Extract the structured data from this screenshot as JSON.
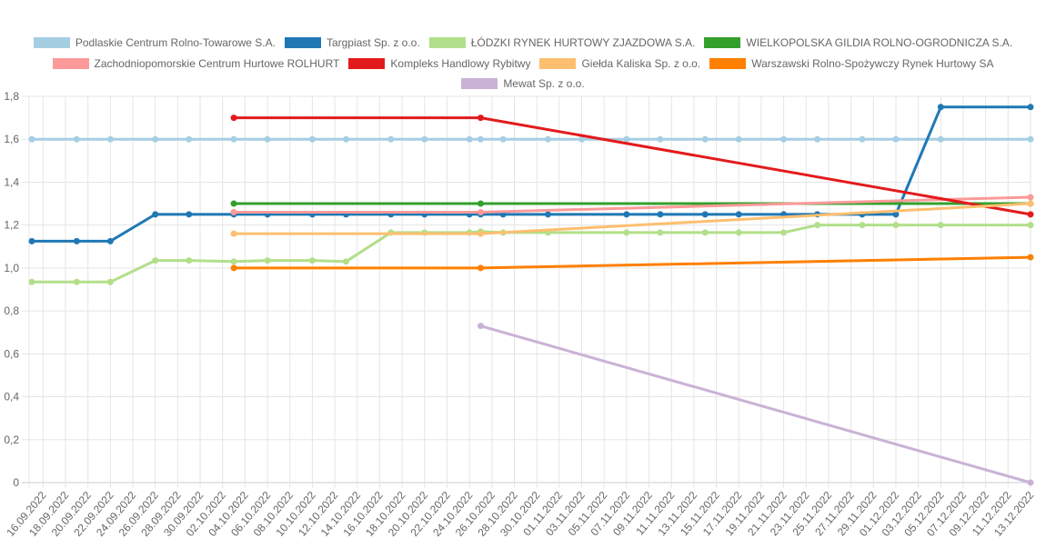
{
  "chart_data": {
    "type": "line",
    "title": "",
    "xlabel": "",
    "ylabel": "",
    "ylim": [
      0,
      1.8
    ],
    "y_ticks": [
      "0",
      "0,2",
      "0,4",
      "0,6",
      "0,8",
      "1,0",
      "1,2",
      "1,4",
      "1,6",
      "1,8"
    ],
    "x_range": [
      "2022-09-15",
      "2022-12-13"
    ],
    "x_tick_labels": [
      "16.09.2022",
      "18.09.2022",
      "20.09.2022",
      "22.09.2022",
      "24.09.2022",
      "26.09.2022",
      "28.09.2022",
      "30.09.2022",
      "02.10.2022",
      "04.10.2022",
      "06.10.2022",
      "08.10.2022",
      "10.10.2022",
      "12.10.2022",
      "14.10.2022",
      "16.10.2022",
      "18.10.2022",
      "20.10.2022",
      "22.10.2022",
      "24.10.2022",
      "26.10.2022",
      "28.10.2022",
      "30.10.2022",
      "01.11.2022",
      "03.11.2022",
      "05.11.2022",
      "07.11.2022",
      "09.11.2022",
      "11.11.2022",
      "13.11.2022",
      "15.11.2022",
      "17.11.2022",
      "19.11.2022",
      "21.11.2022",
      "23.11.2022",
      "25.11.2022",
      "27.11.2022",
      "29.11.2022",
      "01.12.2022",
      "03.12.2022",
      "05.12.2022",
      "07.12.2022",
      "09.12.2022",
      "11.12.2022",
      "13.12.2022"
    ],
    "grid": true,
    "legend_position": "top",
    "series": [
      {
        "name": "Podlaskie Centrum Rolno-Towarowe S.A.",
        "color": "#a6cee3",
        "x": [
          "2022-09-15",
          "2022-09-19",
          "2022-09-22",
          "2022-09-26",
          "2022-09-29",
          "2022-10-03",
          "2022-10-06",
          "2022-10-10",
          "2022-10-13",
          "2022-10-17",
          "2022-10-20",
          "2022-10-24",
          "2022-10-25",
          "2022-10-27",
          "2022-10-31",
          "2022-11-03",
          "2022-11-07",
          "2022-11-10",
          "2022-11-14",
          "2022-11-17",
          "2022-11-21",
          "2022-11-24",
          "2022-11-28",
          "2022-12-01",
          "2022-12-05",
          "2022-12-13"
        ],
        "y": [
          1.6,
          1.6,
          1.6,
          1.6,
          1.6,
          1.6,
          1.6,
          1.6,
          1.6,
          1.6,
          1.6,
          1.6,
          1.6,
          1.6,
          1.6,
          1.6,
          1.6,
          1.6,
          1.6,
          1.6,
          1.6,
          1.6,
          1.6,
          1.6,
          1.6,
          1.6
        ]
      },
      {
        "name": "Targpiast Sp. z o.o.",
        "color": "#1f78b4",
        "x": [
          "2022-09-15",
          "2022-09-19",
          "2022-09-22",
          "2022-09-26",
          "2022-09-29",
          "2022-10-03",
          "2022-10-06",
          "2022-10-10",
          "2022-10-13",
          "2022-10-17",
          "2022-10-20",
          "2022-10-24",
          "2022-10-25",
          "2022-10-27",
          "2022-10-31",
          "2022-11-07",
          "2022-11-10",
          "2022-11-14",
          "2022-11-17",
          "2022-11-21",
          "2022-11-24",
          "2022-11-28",
          "2022-12-01",
          "2022-12-05",
          "2022-12-13"
        ],
        "y": [
          1.125,
          1.125,
          1.125,
          1.25,
          1.25,
          1.25,
          1.25,
          1.25,
          1.25,
          1.25,
          1.25,
          1.25,
          1.25,
          1.25,
          1.25,
          1.25,
          1.25,
          1.25,
          1.25,
          1.25,
          1.25,
          1.25,
          1.25,
          1.75,
          1.75
        ]
      },
      {
        "name": "ŁÓDZKI RYNEK HURTOWY ZJAZDOWA S.A.",
        "color": "#b2df8a",
        "x": [
          "2022-09-15",
          "2022-09-19",
          "2022-09-22",
          "2022-09-26",
          "2022-09-29",
          "2022-10-03",
          "2022-10-06",
          "2022-10-10",
          "2022-10-13",
          "2022-10-17",
          "2022-10-20",
          "2022-10-24",
          "2022-10-25",
          "2022-10-27",
          "2022-10-31",
          "2022-11-07",
          "2022-11-10",
          "2022-11-14",
          "2022-11-17",
          "2022-11-21",
          "2022-11-24",
          "2022-11-28",
          "2022-12-01",
          "2022-12-05",
          "2022-12-13"
        ],
        "y": [
          0.935,
          0.935,
          0.935,
          1.035,
          1.035,
          1.03,
          1.035,
          1.035,
          1.03,
          1.165,
          1.165,
          1.165,
          1.17,
          1.165,
          1.165,
          1.165,
          1.165,
          1.165,
          1.165,
          1.165,
          1.2,
          1.2,
          1.2,
          1.2,
          1.2
        ]
      },
      {
        "name": "WIELKOPOLSKA GILDIA ROLNO-OGRODNICZA S.A.",
        "color": "#33a02c",
        "x": [
          "2022-10-03",
          "2022-10-25",
          "2022-12-13"
        ],
        "y": [
          1.3,
          1.3,
          1.3
        ]
      },
      {
        "name": "Zachodniopomorskie Centrum Hurtowe ROLHURT",
        "color": "#fb9a99",
        "x": [
          "2022-10-03",
          "2022-10-25",
          "2022-12-13"
        ],
        "y": [
          1.26,
          1.26,
          1.33
        ]
      },
      {
        "name": "Kompleks Handlowy Rybitwy",
        "color": "#e31a1c",
        "x": [
          "2022-10-03",
          "2022-10-25",
          "2022-12-13"
        ],
        "y": [
          1.7,
          1.7,
          1.25
        ]
      },
      {
        "name": "Giełda Kaliska Sp. z o.o.",
        "color": "#fdbf6f",
        "x": [
          "2022-10-03",
          "2022-10-25",
          "2022-12-13"
        ],
        "y": [
          1.16,
          1.16,
          1.3
        ]
      },
      {
        "name": "Warszawski Rolno-Spożywczy Rynek Hurtowy SA",
        "color": "#ff7f00",
        "x": [
          "2022-10-03",
          "2022-10-25",
          "2022-12-13"
        ],
        "y": [
          1.0,
          1.0,
          1.05
        ]
      },
      {
        "name": "Mewat Sp. z o.o.",
        "color": "#cab2d6",
        "x": [
          "2022-10-25",
          "2022-12-13"
        ],
        "y": [
          0.73,
          0.0
        ]
      }
    ]
  }
}
